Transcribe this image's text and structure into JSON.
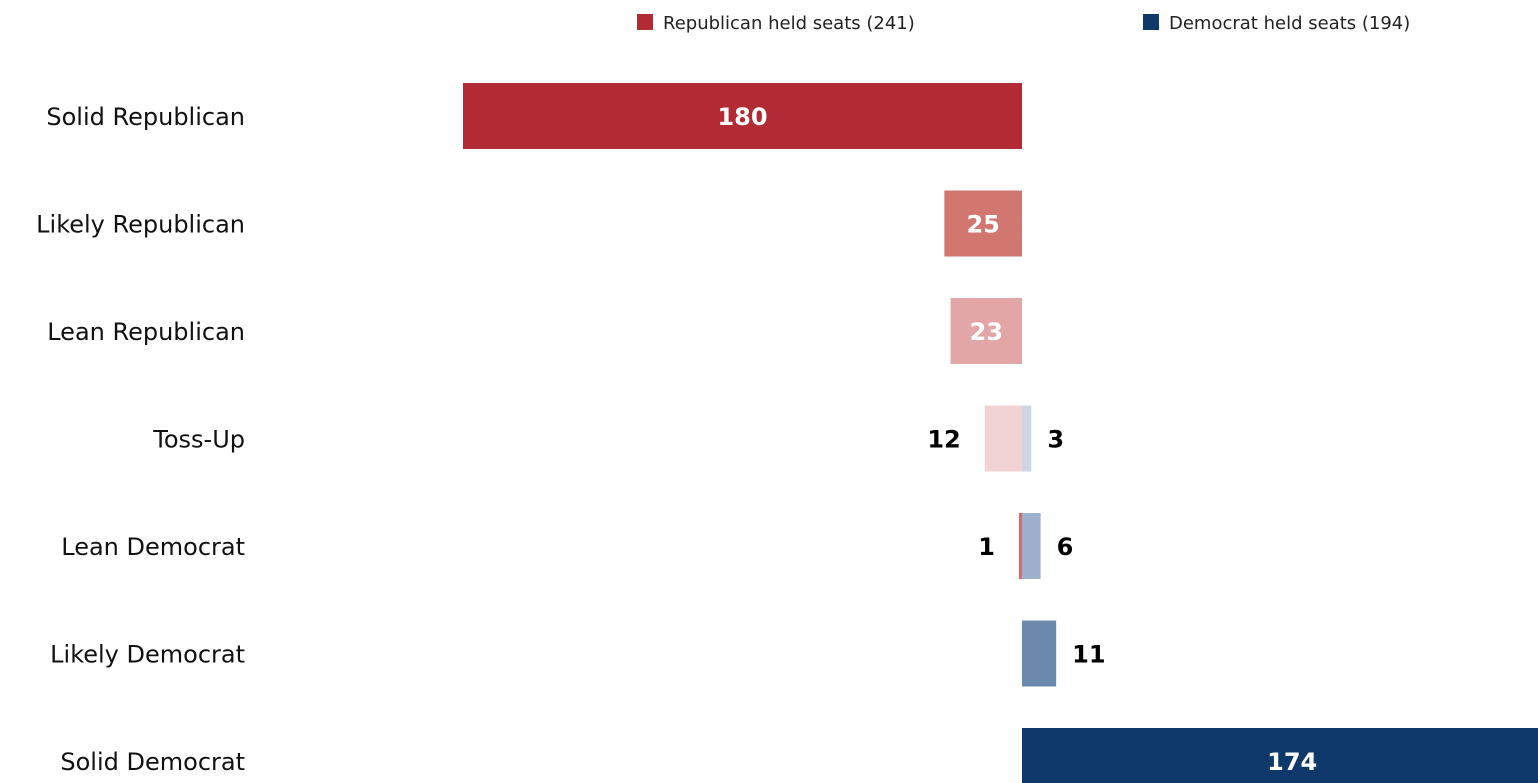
{
  "chart_data": {
    "type": "bar",
    "orientation": "horizontal",
    "layout": "diverging",
    "categories": [
      "Solid Republican",
      "Likely Republican",
      "Lean Republican",
      "Toss-Up",
      "Lean Democrat",
      "Likely Democrat",
      "Solid Democrat"
    ],
    "series": [
      {
        "name": "Republican held seats (241)",
        "direction": "left",
        "color": "#b22a33",
        "values": [
          180,
          25,
          23,
          12,
          1,
          0,
          0
        ],
        "bar_colors": [
          "#b22a33",
          "#d27770",
          "#e2a6a7",
          "#f2d3d4",
          "#cd6e73",
          "#cd6e73",
          "#b22a33"
        ],
        "label_inside": [
          true,
          true,
          true,
          false,
          false,
          false,
          false
        ]
      },
      {
        "name": "Democrat held seats (194)",
        "direction": "right",
        "color": "#0f386b",
        "values": [
          0,
          0,
          0,
          3,
          6,
          11,
          174
        ],
        "bar_colors": [
          "#0f386b",
          "#0f386b",
          "#0f386b",
          "#cdd6e3",
          "#9eb0cb",
          "#6b89ad",
          "#0f386b"
        ],
        "label_inside": [
          false,
          false,
          false,
          false,
          false,
          false,
          true
        ]
      }
    ],
    "legend_position": "top-right",
    "grid": false,
    "xlim": [
      -180,
      174
    ]
  }
}
